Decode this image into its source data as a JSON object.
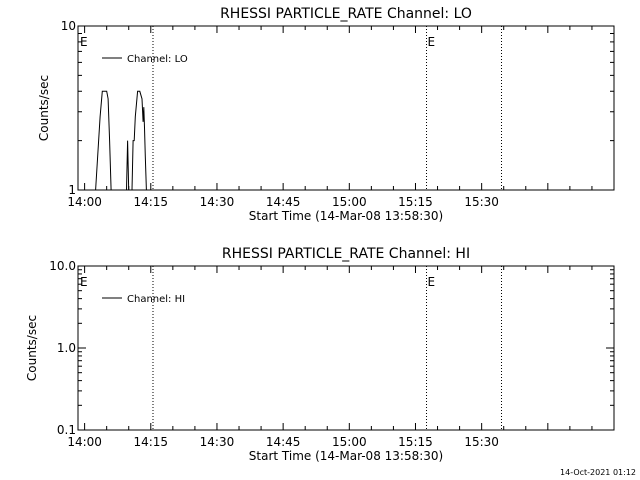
{
  "footer_timestamp": "14-Oct-2021 01:12",
  "chart_data": [
    {
      "type": "line",
      "title": "RHESSI PARTICLE_RATE Channel: LO",
      "xlabel": "Start Time (14-Mar-08 13:58:30)",
      "ylabel": "Counts/sec",
      "yscale": "log",
      "xlim": [
        "13:58:30",
        "16:00:00"
      ],
      "ylim": [
        1,
        10
      ],
      "xticks": [
        "14:00",
        "14:15",
        "14:30",
        "14:45",
        "15:00",
        "15:15",
        "15:30"
      ],
      "yticks": [
        "1",
        "10"
      ],
      "legend": [
        "Channel: LO"
      ],
      "legend_position": "top-left",
      "markers": [
        {
          "time": "14:15:30",
          "label": ""
        },
        {
          "time": "15:17:30",
          "label": "E"
        },
        {
          "time": "15:34:30",
          "label": ""
        }
      ],
      "start_marker_label": "E",
      "series": [
        {
          "name": "Channel: LO",
          "points": [
            [
              "14:02:30",
              1
            ],
            [
              "14:03:30",
              2.8
            ],
            [
              "14:04:00",
              4.0
            ],
            [
              "14:04:30",
              4.0
            ],
            [
              "14:05:00",
              4.0
            ],
            [
              "14:05:20",
              3.6
            ],
            [
              "14:05:40",
              2.0
            ],
            [
              "14:06:00",
              1
            ],
            [
              "14:09:30",
              1
            ],
            [
              "14:09:45",
              2.0
            ],
            [
              "14:10:00",
              1
            ],
            [
              "14:10:45",
              1
            ],
            [
              "14:11:00",
              2.0
            ],
            [
              "14:11:15",
              2.0
            ],
            [
              "14:11:30",
              2.8
            ],
            [
              "14:12:00",
              4.0
            ],
            [
              "14:12:30",
              4.0
            ],
            [
              "14:13:00",
              3.6
            ],
            [
              "14:13:15",
              2.6
            ],
            [
              "14:13:25",
              3.2
            ],
            [
              "14:13:35",
              2.4
            ],
            [
              "14:13:45",
              1.6
            ],
            [
              "14:14:00",
              1
            ]
          ]
        }
      ]
    },
    {
      "type": "line",
      "title": "RHESSI PARTICLE_RATE Channel: HI",
      "xlabel": "Start Time (14-Mar-08 13:58:30)",
      "ylabel": "Counts/sec",
      "yscale": "log",
      "xlim": [
        "13:58:30",
        "16:00:00"
      ],
      "ylim": [
        0.1,
        10.0
      ],
      "xticks": [
        "14:00",
        "14:15",
        "14:30",
        "14:45",
        "15:00",
        "15:15",
        "15:30"
      ],
      "yticks": [
        "0.1",
        "1.0",
        "10.0"
      ],
      "legend": [
        "Channel: HI"
      ],
      "legend_position": "top-left",
      "markers": [
        {
          "time": "14:15:30",
          "label": ""
        },
        {
          "time": "15:17:30",
          "label": "E"
        },
        {
          "time": "15:34:30",
          "label": ""
        }
      ],
      "start_marker_label": "E",
      "series": [
        {
          "name": "Channel: HI",
          "points": []
        }
      ]
    }
  ]
}
